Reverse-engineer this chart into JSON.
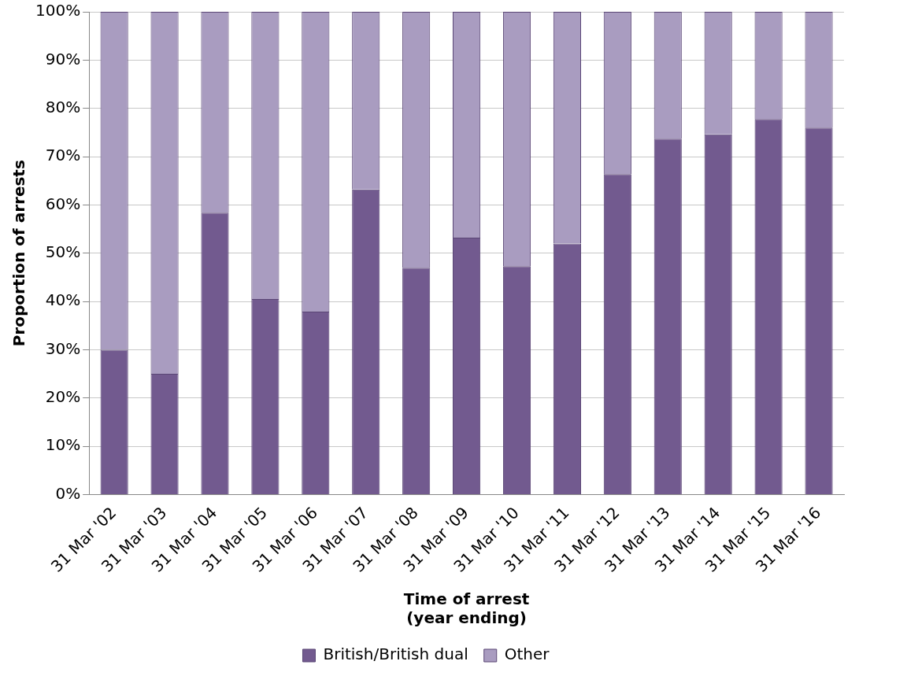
{
  "chart_data": {
    "type": "bar",
    "stacked": true,
    "xlabel": "Time of arrest\n(year ending)",
    "ylabel": "Proportion of arrests",
    "categories": [
      "31 Mar '02",
      "31 Mar '03",
      "31 Mar '04",
      "31 Mar '05",
      "31 Mar '06",
      "31 Mar '07",
      "31 Mar '08",
      "31 Mar '09",
      "31 Mar '10",
      "31 Mar '11",
      "31 Mar '12",
      "31 Mar '13",
      "31 Mar '14",
      "31 Mar '15",
      "31 Mar '16"
    ],
    "series": [
      {
        "name": "British/British dual",
        "color": "#725a8f",
        "values": [
          30,
          25,
          58.4,
          40.5,
          37.9,
          63.2,
          47,
          53.2,
          47.3,
          52,
          66.4,
          73.7,
          74.6,
          77.8,
          76
        ]
      },
      {
        "name": "Other",
        "color": "#a99cc0",
        "values": [
          70,
          75,
          41.6,
          59.5,
          62.1,
          36.8,
          53,
          46.8,
          52.7,
          48,
          33.6,
          26.3,
          25.4,
          22.2,
          24
        ]
      }
    ],
    "ylim": [
      0,
      100
    ],
    "yticks": [
      {
        "value": 0,
        "label": "0%"
      },
      {
        "value": 10,
        "label": "10%"
      },
      {
        "value": 20,
        "label": "20%"
      },
      {
        "value": 30,
        "label": "30%"
      },
      {
        "value": 40,
        "label": "40%"
      },
      {
        "value": 50,
        "label": "50%"
      },
      {
        "value": 60,
        "label": "60%"
      },
      {
        "value": 70,
        "label": "70%"
      },
      {
        "value": 80,
        "label": "80%"
      },
      {
        "value": 90,
        "label": "90%"
      },
      {
        "value": 100,
        "label": "100%"
      }
    ],
    "grid": "y",
    "legend": "bottom"
  }
}
